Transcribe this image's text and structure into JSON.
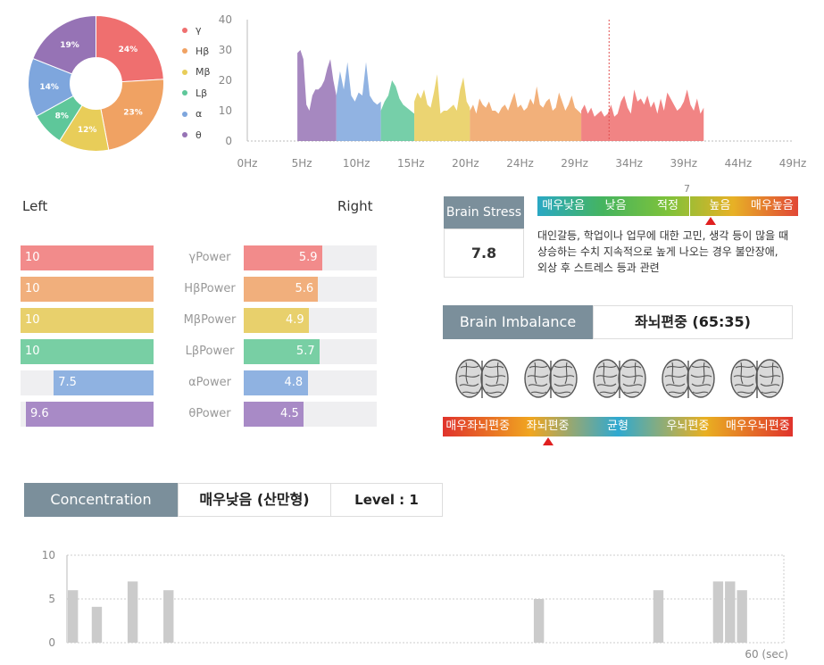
{
  "donut": {
    "segments": [
      {
        "label": "γ",
        "pct": 24,
        "pct_label": "24%",
        "color": "#ef6f6f"
      },
      {
        "label": "Hβ",
        "pct": 23,
        "pct_label": "23%",
        "color": "#f0a263"
      },
      {
        "label": "Mβ",
        "pct": 12,
        "pct_label": "12%",
        "color": "#e8cd59"
      },
      {
        "label": "Lβ",
        "pct": 8,
        "pct_label": "8%",
        "color": "#5ec79a"
      },
      {
        "label": "α",
        "pct": 14,
        "pct_label": "14%",
        "color": "#7ea6dd"
      },
      {
        "label": "θ",
        "pct": 19,
        "pct_label": "19%",
        "color": "#9673b5"
      }
    ]
  },
  "spectrum": {
    "y_ticks": [
      "0",
      "10",
      "20",
      "30",
      "40"
    ],
    "x_ticks": [
      "0Hz",
      "5Hz",
      "10Hz",
      "15Hz",
      "20Hz",
      "24Hz",
      "29Hz",
      "34Hz",
      "39Hz",
      "44Hz",
      "49Hz"
    ],
    "marker_hz": 32.5,
    "bands": [
      {
        "name": "θ",
        "color": "#9673b5",
        "from_hz": 4.5,
        "to_hz": 8,
        "values": [
          29,
          30,
          27,
          12,
          10,
          15,
          17,
          17,
          18,
          20,
          24,
          27,
          20,
          15
        ]
      },
      {
        "name": "α",
        "color": "#7ea6dd",
        "from_hz": 8,
        "to_hz": 12,
        "values": [
          15,
          23,
          17,
          26,
          15,
          13,
          16,
          15,
          26,
          15,
          13,
          12,
          13
        ]
      },
      {
        "name": "Lβ",
        "color": "#5ec79a",
        "from_hz": 12,
        "to_hz": 15,
        "values": [
          10,
          13,
          15,
          20,
          18,
          14,
          12,
          11,
          10,
          9
        ]
      },
      {
        "name": "Mβ",
        "color": "#e8cd59",
        "from_hz": 15,
        "to_hz": 20,
        "values": [
          13,
          16,
          14,
          17,
          12,
          11,
          16,
          22,
          9,
          10,
          10,
          11,
          12,
          10,
          17,
          21,
          13,
          11
        ]
      },
      {
        "name": "Hβ",
        "color": "#f0a263",
        "from_hz": 20,
        "to_hz": 30,
        "values": [
          10,
          12,
          9,
          14,
          12,
          11,
          13,
          10,
          10,
          9,
          11,
          12,
          10,
          13,
          16,
          11,
          12,
          10,
          11,
          14,
          12,
          18,
          12,
          11,
          13,
          14,
          10,
          11,
          16,
          13,
          10,
          12,
          15,
          11,
          10,
          9
        ]
      },
      {
        "name": "γ",
        "color": "#ef6f6f",
        "from_hz": 30,
        "to_hz": 41,
        "values": [
          10,
          12,
          9,
          11,
          8,
          9,
          10,
          8,
          9,
          12,
          8,
          9,
          13,
          15,
          11,
          9,
          17,
          13,
          14,
          12,
          15,
          11,
          13,
          9,
          14,
          10,
          16,
          14,
          12,
          10,
          11,
          13,
          17,
          12,
          10,
          14,
          9,
          11
        ]
      }
    ]
  },
  "lr": {
    "left_title": "Left",
    "right_title": "Right",
    "rows": [
      {
        "label": "γPower",
        "left": 10,
        "left_text": "10",
        "right": 5.9,
        "right_text": "5.9",
        "color": "#f28b8b"
      },
      {
        "label": "HβPower",
        "left": 10,
        "left_text": "10",
        "right": 5.6,
        "right_text": "5.6",
        "color": "#f1af7c"
      },
      {
        "label": "MβPower",
        "left": 10,
        "left_text": "10",
        "right": 4.9,
        "right_text": "4.9",
        "color": "#e8d06c"
      },
      {
        "label": "LβPower",
        "left": 10,
        "left_text": "10",
        "right": 5.7,
        "right_text": "5.7",
        "color": "#78cfa4"
      },
      {
        "label": "αPower",
        "left": 7.5,
        "left_text": "7.5",
        "right": 4.8,
        "right_text": "4.8",
        "color": "#8fb2e1"
      },
      {
        "label": "θPower",
        "left": 9.6,
        "left_text": "9.6",
        "right": 4.5,
        "right_text": "4.5",
        "color": "#a88ac6"
      }
    ]
  },
  "stress": {
    "title": "Brain Stress",
    "value": "7.8",
    "level_mark": "7",
    "segments": [
      {
        "label": "매우낮음",
        "color": "#2aa8c4"
      },
      {
        "label": "낮음",
        "color": "#45b45f"
      },
      {
        "label": "적정",
        "color": "#7ec23a"
      },
      {
        "label": "높음",
        "color": "#e7b126"
      },
      {
        "label": "매우높음",
        "color": "#e14736"
      }
    ],
    "pointer_fraction": 0.665,
    "description_lines": [
      "대인갈등, 학업이나 업무에 대한 고민, 생각 등이 많을 때",
      "상승하는 수치 지속적으로 높게 나오는 경우 불안장애,",
      "외상 후 스트레스 등과 관련"
    ]
  },
  "imbalance": {
    "title": "Brain Imbalance",
    "result": "좌뇌편중 (65:35)",
    "brains": [
      "brain-1",
      "brain-2",
      "brain-3",
      "brain-4",
      "brain-5"
    ],
    "segments": [
      {
        "label": "매우좌뇌편중",
        "color": "#e0332c"
      },
      {
        "label": "좌뇌편중",
        "color": "#f0a620"
      },
      {
        "label": "균형",
        "color": "#2fa9d1"
      },
      {
        "label": "우뇌편중",
        "color": "#e9b022"
      },
      {
        "label": "매우우뇌편중",
        "color": "#e0332c"
      }
    ],
    "pointer_fraction": 0.3
  },
  "concentration": {
    "title": "Concentration",
    "result": "매우낮음 (산만형)",
    "level": "Level : 1",
    "y_ticks": [
      "0",
      "5",
      "10"
    ],
    "x_end_label": "60 (sec)",
    "chart_data": {
      "type": "bar",
      "x_max_sec": 60,
      "ylim": [
        0,
        10
      ],
      "bars": [
        {
          "sec": 1,
          "value": 6
        },
        {
          "sec": 3,
          "value": 4.1
        },
        {
          "sec": 6,
          "value": 7
        },
        {
          "sec": 9,
          "value": 6
        },
        {
          "sec": 40,
          "value": 5
        },
        {
          "sec": 50,
          "value": 6
        },
        {
          "sec": 55,
          "value": 7
        },
        {
          "sec": 56,
          "value": 7
        },
        {
          "sec": 57,
          "value": 6
        }
      ]
    }
  }
}
